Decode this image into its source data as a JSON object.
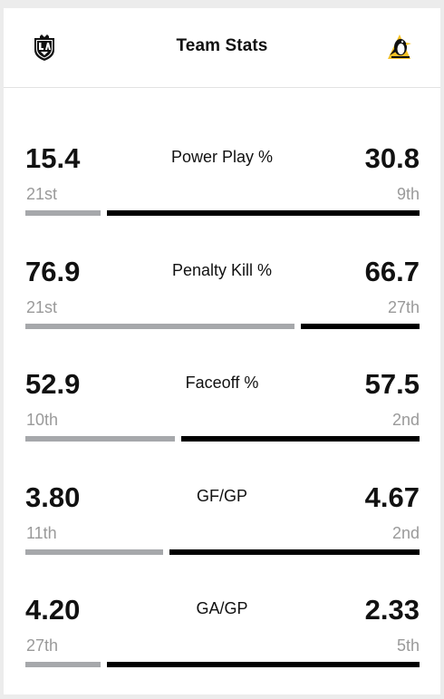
{
  "header": {
    "title": "Team Stats",
    "left_team_logo": "la-kings-logo",
    "right_team_logo": "pittsburgh-penguins-logo"
  },
  "colors": {
    "left_bar": "#a6a8ab",
    "right_bar": "#000000",
    "rank_text": "#9a9a9a"
  },
  "stats": [
    {
      "label": "Power Play %",
      "left_value": "15.4",
      "left_rank": "21st",
      "right_value": "30.8",
      "right_rank": "9th",
      "left_share": 0.195
    },
    {
      "label": "Penalty Kill %",
      "left_value": "76.9",
      "left_rank": "21st",
      "right_value": "66.7",
      "right_rank": "27th",
      "left_share": 0.695
    },
    {
      "label": "Faceoff %",
      "left_value": "52.9",
      "left_rank": "10th",
      "right_value": "57.5",
      "right_rank": "2nd",
      "left_share": 0.385
    },
    {
      "label": "GF/GP",
      "left_value": "3.80",
      "left_rank": "11th",
      "right_value": "4.67",
      "right_rank": "2nd",
      "left_share": 0.355
    },
    {
      "label": "GA/GP",
      "left_value": "4.20",
      "left_rank": "27th",
      "right_value": "2.33",
      "right_rank": "5th",
      "left_share": 0.195
    }
  ]
}
